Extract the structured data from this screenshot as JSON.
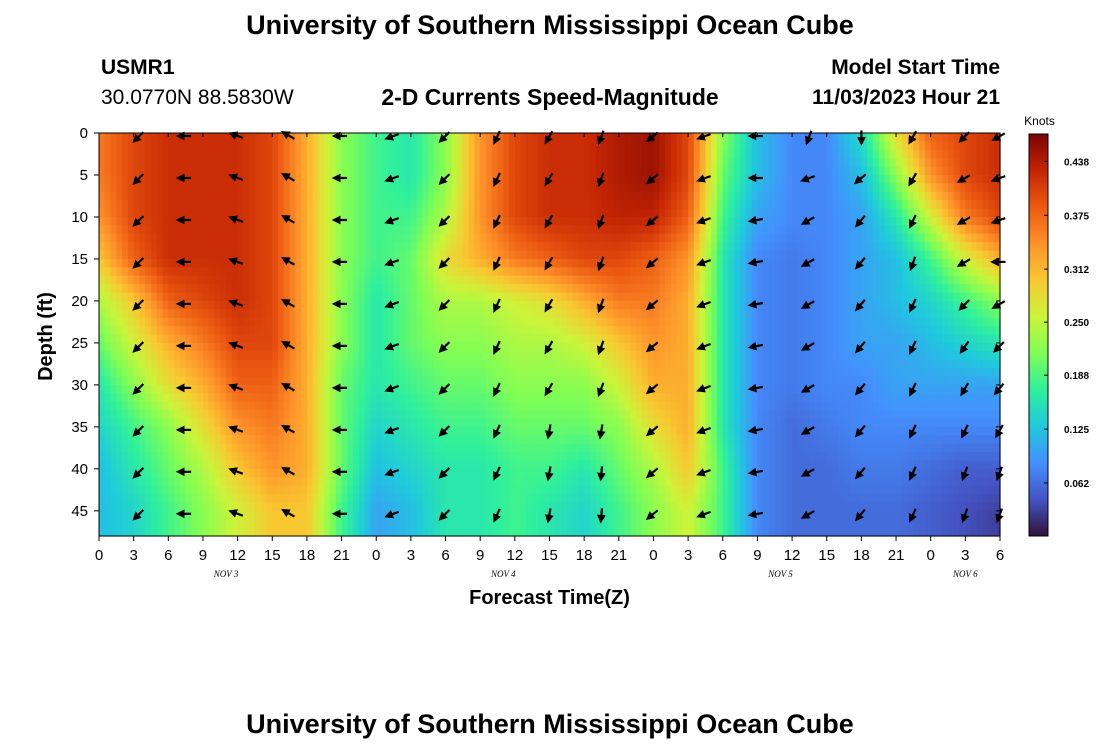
{
  "header": {
    "title": "University of Southern Mississippi Ocean Cube",
    "station_id": "USMR1",
    "coordinates": "30.0770N  88.5830W",
    "model_start_label": "Model Start Time",
    "model_start_value": "11/03/2023 Hour 21"
  },
  "footer": {
    "title": "University of Southern Mississippi Ocean Cube"
  },
  "chart_data": {
    "type": "heatmap",
    "title": "2-D Currents Speed-Magnitude",
    "xlabel": "Forecast Time(Z)",
    "ylabel": "Depth (ft)",
    "x_range_hours": [
      0,
      78
    ],
    "y_range_ft": [
      0,
      48
    ],
    "x_tick_labels": [
      "0",
      "3",
      "6",
      "9",
      "12",
      "15",
      "18",
      "21",
      "0",
      "3",
      "6",
      "9",
      "12",
      "15",
      "18",
      "21",
      "0",
      "3",
      "6",
      "9",
      "12",
      "15",
      "18",
      "21",
      "0",
      "3",
      "6"
    ],
    "day_labels": [
      {
        "text": "NOV 3",
        "hour": 11
      },
      {
        "text": "NOV 4",
        "hour": 35
      },
      {
        "text": "NOV 5",
        "hour": 59
      },
      {
        "text": "NOV 6",
        "hour": 75
      }
    ],
    "y_ticks": [
      0,
      5,
      10,
      15,
      20,
      25,
      30,
      35,
      40,
      45
    ],
    "colorbar": {
      "title": "Knots",
      "ticks": [
        "0.438",
        "0.375",
        "0.312",
        "0.250",
        "0.188",
        "0.125",
        "0.062"
      ],
      "min": 0.0,
      "max": 0.47
    },
    "colormap": [
      "#30123b",
      "#4454c4",
      "#4490fe",
      "#1fc9dd",
      "#2ff09c",
      "#7ffe55",
      "#cbf43a",
      "#f8c931",
      "#fe922a",
      "#ec5a12",
      "#c42503",
      "#7a0403"
    ],
    "depths": [
      0,
      5,
      10,
      15,
      20,
      25,
      30,
      35,
      40,
      45
    ],
    "times": [
      0,
      3,
      6,
      9,
      12,
      15,
      18,
      21,
      24,
      27,
      30,
      33,
      36,
      39,
      42,
      45,
      48,
      51,
      54,
      57,
      60,
      63,
      66,
      69,
      72,
      75,
      78
    ],
    "speed_knots": [
      [
        0.36,
        0.4,
        0.42,
        0.42,
        0.42,
        0.4,
        0.32,
        0.22,
        0.18,
        0.16,
        0.22,
        0.34,
        0.4,
        0.42,
        0.42,
        0.44,
        0.45,
        0.4,
        0.22,
        0.12,
        0.08,
        0.08,
        0.15,
        0.28,
        0.38,
        0.4,
        0.42
      ],
      [
        0.36,
        0.4,
        0.42,
        0.42,
        0.42,
        0.4,
        0.32,
        0.22,
        0.18,
        0.16,
        0.22,
        0.34,
        0.4,
        0.42,
        0.42,
        0.44,
        0.45,
        0.4,
        0.2,
        0.12,
        0.08,
        0.08,
        0.12,
        0.22,
        0.34,
        0.4,
        0.42
      ],
      [
        0.34,
        0.4,
        0.42,
        0.42,
        0.42,
        0.4,
        0.32,
        0.22,
        0.18,
        0.18,
        0.24,
        0.34,
        0.4,
        0.42,
        0.42,
        0.43,
        0.43,
        0.38,
        0.18,
        0.1,
        0.08,
        0.08,
        0.1,
        0.16,
        0.26,
        0.36,
        0.4
      ],
      [
        0.3,
        0.38,
        0.42,
        0.42,
        0.42,
        0.4,
        0.32,
        0.22,
        0.18,
        0.2,
        0.28,
        0.32,
        0.36,
        0.38,
        0.4,
        0.4,
        0.38,
        0.34,
        0.16,
        0.08,
        0.07,
        0.08,
        0.1,
        0.12,
        0.18,
        0.26,
        0.32
      ],
      [
        0.24,
        0.3,
        0.38,
        0.4,
        0.42,
        0.4,
        0.32,
        0.22,
        0.16,
        0.2,
        0.24,
        0.24,
        0.26,
        0.28,
        0.32,
        0.36,
        0.36,
        0.32,
        0.16,
        0.08,
        0.07,
        0.08,
        0.1,
        0.12,
        0.14,
        0.18,
        0.22
      ],
      [
        0.2,
        0.26,
        0.32,
        0.36,
        0.4,
        0.4,
        0.32,
        0.22,
        0.16,
        0.2,
        0.22,
        0.22,
        0.24,
        0.24,
        0.26,
        0.3,
        0.34,
        0.32,
        0.16,
        0.08,
        0.07,
        0.08,
        0.1,
        0.1,
        0.12,
        0.14,
        0.16
      ],
      [
        0.16,
        0.22,
        0.28,
        0.32,
        0.38,
        0.38,
        0.32,
        0.2,
        0.16,
        0.18,
        0.2,
        0.2,
        0.22,
        0.22,
        0.22,
        0.26,
        0.32,
        0.32,
        0.16,
        0.08,
        0.07,
        0.08,
        0.08,
        0.1,
        0.1,
        0.1,
        0.1
      ],
      [
        0.14,
        0.18,
        0.22,
        0.28,
        0.34,
        0.36,
        0.32,
        0.2,
        0.14,
        0.16,
        0.18,
        0.18,
        0.2,
        0.2,
        0.2,
        0.22,
        0.28,
        0.32,
        0.16,
        0.08,
        0.06,
        0.07,
        0.08,
        0.08,
        0.08,
        0.08,
        0.08
      ],
      [
        0.12,
        0.16,
        0.2,
        0.24,
        0.3,
        0.34,
        0.32,
        0.2,
        0.12,
        0.14,
        0.16,
        0.16,
        0.18,
        0.18,
        0.16,
        0.2,
        0.24,
        0.3,
        0.18,
        0.08,
        0.06,
        0.06,
        0.07,
        0.07,
        0.06,
        0.05,
        0.05
      ],
      [
        0.12,
        0.14,
        0.18,
        0.22,
        0.26,
        0.3,
        0.3,
        0.18,
        0.1,
        0.12,
        0.16,
        0.16,
        0.18,
        0.16,
        0.14,
        0.18,
        0.22,
        0.26,
        0.18,
        0.08,
        0.06,
        0.06,
        0.06,
        0.06,
        0.05,
        0.04,
        0.03
      ]
    ],
    "arrow_times": [
      3.5,
      7.5,
      12,
      16.5,
      21,
      25.5,
      30,
      34.5,
      39,
      43.5,
      48,
      52.5,
      57,
      61.5,
      66,
      70.5,
      75,
      78
    ],
    "arrow_depths": [
      0,
      5,
      10,
      15,
      20,
      25,
      30,
      35,
      40,
      45
    ],
    "arrow_direction_deg": [
      [
        225,
        270,
        290,
        300,
        270,
        250,
        225,
        205,
        210,
        200,
        230,
        250,
        270,
        200,
        180,
        210,
        225,
        240
      ],
      [
        225,
        270,
        290,
        300,
        270,
        250,
        225,
        205,
        210,
        200,
        230,
        250,
        270,
        250,
        230,
        210,
        240,
        250
      ],
      [
        225,
        270,
        290,
        300,
        270,
        250,
        225,
        205,
        210,
        200,
        230,
        250,
        260,
        240,
        220,
        205,
        240,
        250
      ],
      [
        225,
        270,
        290,
        300,
        270,
        250,
        225,
        205,
        210,
        200,
        230,
        250,
        260,
        240,
        220,
        200,
        240,
        270
      ],
      [
        225,
        270,
        290,
        300,
        270,
        250,
        225,
        205,
        210,
        200,
        230,
        250,
        260,
        240,
        220,
        205,
        225,
        240
      ],
      [
        225,
        270,
        290,
        300,
        270,
        250,
        225,
        205,
        210,
        200,
        230,
        250,
        260,
        240,
        220,
        205,
        215,
        225
      ],
      [
        225,
        270,
        290,
        300,
        270,
        250,
        225,
        205,
        210,
        200,
        230,
        250,
        260,
        240,
        220,
        205,
        210,
        220
      ],
      [
        225,
        270,
        290,
        300,
        270,
        250,
        225,
        205,
        190,
        190,
        230,
        250,
        260,
        240,
        220,
        205,
        205,
        210
      ],
      [
        225,
        270,
        290,
        300,
        270,
        250,
        225,
        205,
        190,
        185,
        230,
        250,
        260,
        240,
        220,
        205,
        200,
        200
      ],
      [
        225,
        270,
        290,
        300,
        270,
        250,
        225,
        205,
        190,
        185,
        230,
        250,
        260,
        240,
        220,
        205,
        200,
        200
      ]
    ]
  }
}
